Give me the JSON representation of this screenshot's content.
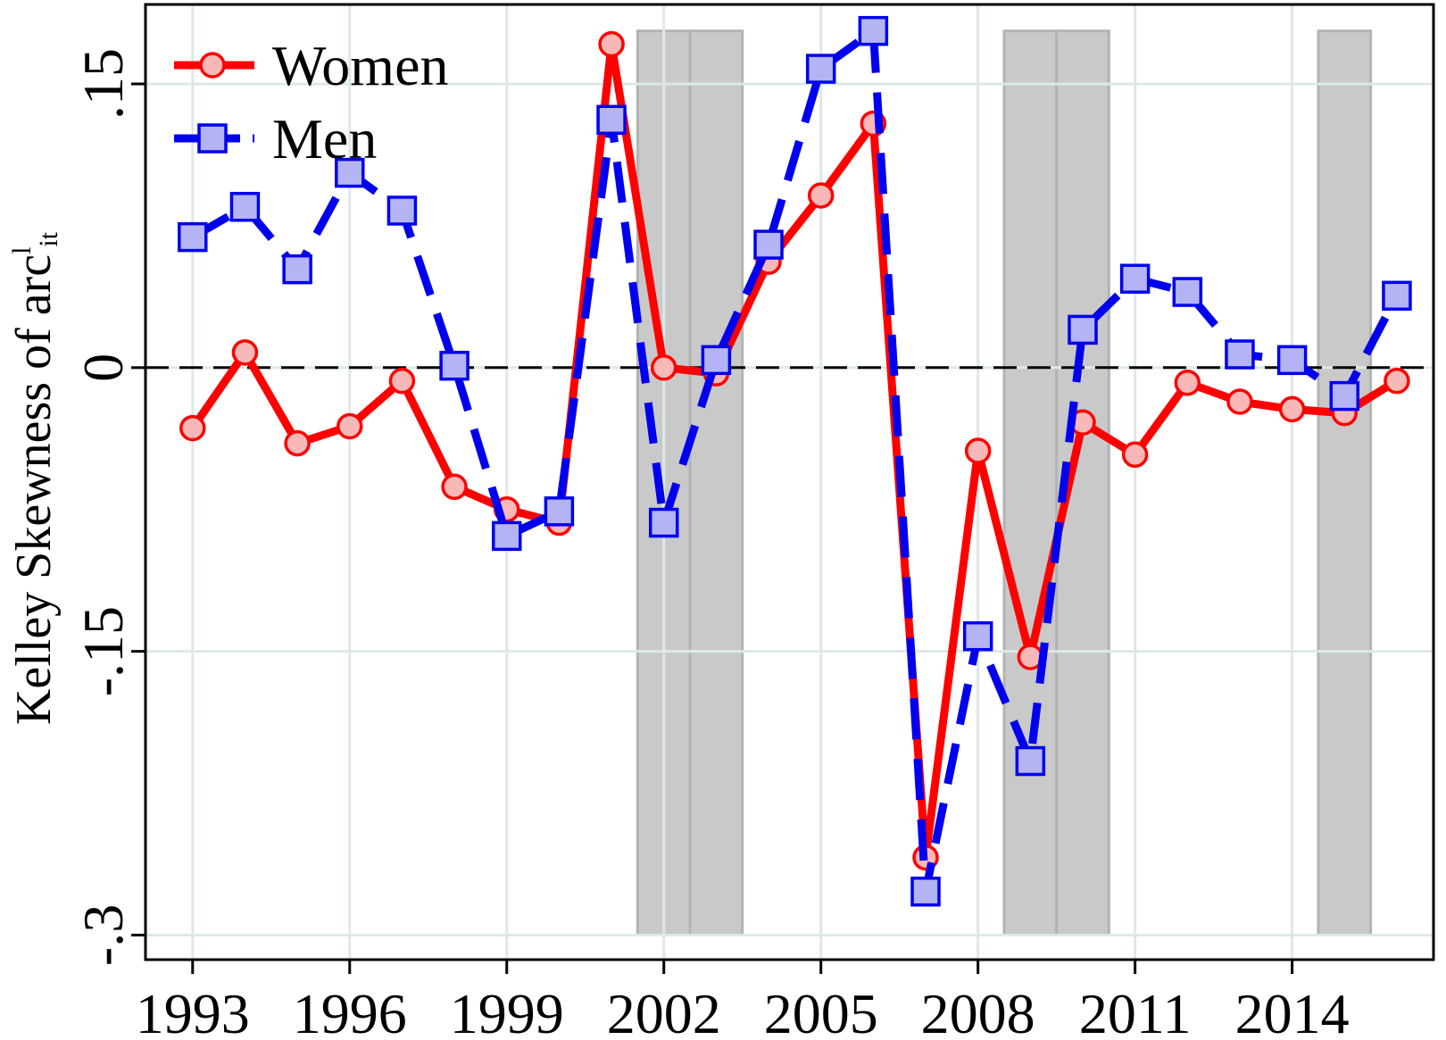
{
  "chart_data": {
    "type": "line",
    "xlabel": "",
    "ylabel_main": "Kelley Skewness of arc",
    "ylabel_sup": "l",
    "ylabel_sub": "it",
    "xlim": [
      1992.1,
      2016.7
    ],
    "ylim": [
      -0.313,
      0.192
    ],
    "x_ticks": [
      1993,
      1996,
      1999,
      2002,
      2005,
      2008,
      2011,
      2014
    ],
    "x_tick_labels": [
      "1993",
      "1996",
      "1999",
      "2002",
      "2005",
      "2008",
      "2011",
      "2014"
    ],
    "y_ticks": [
      -0.3,
      -0.15,
      0,
      0.15
    ],
    "y_tick_labels": [
      "-.3",
      "-.15",
      "0",
      ".15"
    ],
    "grid": true,
    "legend_position": "top-left",
    "reference_line": 0,
    "recession_bands": [
      [
        2001.5,
        2002.5
      ],
      [
        2002.5,
        2003.5
      ],
      [
        2008.5,
        2009.5
      ],
      [
        2009.5,
        2010.5
      ],
      [
        2014.5,
        2015.5
      ]
    ],
    "x": [
      1993,
      1994,
      1995,
      1996,
      1997,
      1998,
      1999,
      2000,
      2001,
      2002,
      2003,
      2004,
      2005,
      2006,
      2007,
      2008,
      2009,
      2010,
      2011,
      2012,
      2013,
      2014,
      2015,
      2016
    ],
    "series": [
      {
        "name": "Women",
        "color": "#ff0000",
        "marker": "circle",
        "marker_fill": "#f9b8b8",
        "style": "solid",
        "values": [
          -0.032,
          0.008,
          -0.04,
          -0.031,
          -0.007,
          -0.063,
          -0.075,
          -0.082,
          0.171,
          0.0,
          -0.003,
          0.056,
          0.091,
          0.129,
          -0.259,
          -0.044,
          -0.153,
          -0.029,
          -0.046,
          -0.008,
          -0.018,
          -0.022,
          -0.024,
          -0.007
        ]
      },
      {
        "name": "Men",
        "color": "#0000ee",
        "marker": "square",
        "marker_fill": "#b4b4f4",
        "style": "dashed",
        "values": [
          0.069,
          0.085,
          0.052,
          0.103,
          0.083,
          0.001,
          -0.089,
          -0.076,
          0.131,
          -0.082,
          0.004,
          0.065,
          0.158,
          0.178,
          -0.277,
          -0.142,
          -0.208,
          0.02,
          0.047,
          0.04,
          0.007,
          0.004,
          -0.015,
          0.038
        ]
      }
    ]
  }
}
